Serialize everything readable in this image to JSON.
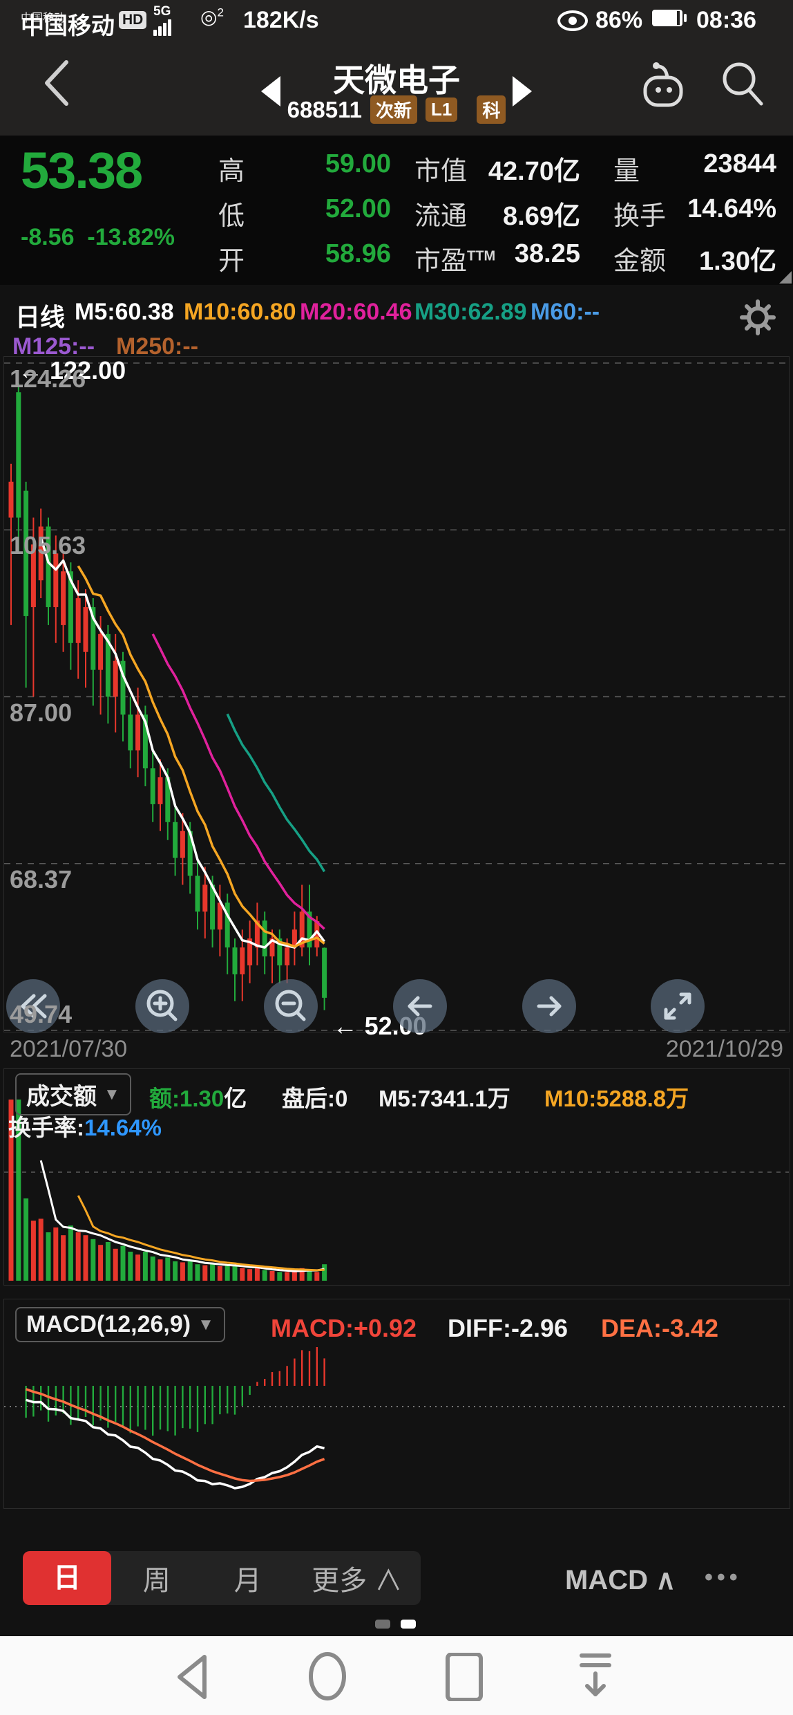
{
  "status_bar": {
    "carrier": "中国移动",
    "hd": "HD",
    "net": "5G",
    "volte": "◎",
    "volte_sup": "2",
    "speed": "182K/s",
    "eye_pct": "86%",
    "time": "08:36"
  },
  "nav": {
    "title": "天微电子",
    "code": "688511",
    "badges": [
      "次新",
      "L1",
      "科"
    ]
  },
  "quote": {
    "price": "53.38",
    "change": "-8.56",
    "change_pct": "-13.82%",
    "left": [
      {
        "label": "高",
        "value": "59.00"
      },
      {
        "label": "低",
        "value": "52.00"
      },
      {
        "label": "开",
        "value": "58.96"
      }
    ],
    "mid": [
      {
        "label": "市值",
        "value": "42.70亿"
      },
      {
        "label": "流通",
        "value": "8.69亿"
      },
      {
        "label": "市盈",
        "sup": "TTM",
        "value": "38.25"
      }
    ],
    "right": [
      {
        "label": "量",
        "value": "23844"
      },
      {
        "label": "换手",
        "value": "14.64%"
      },
      {
        "label": "金额",
        "value": "1.30亿"
      }
    ]
  },
  "indicators": {
    "period": "日线",
    "items": [
      {
        "label": "M5:60.38",
        "color": "#ffffff"
      },
      {
        "label": "M10:60.80",
        "color": "#f5a623"
      },
      {
        "label": "M20:60.46",
        "color": "#e0219c"
      },
      {
        "label": "M30:62.89",
        "color": "#16a085"
      },
      {
        "label": "M60:--",
        "color": "#4a9be6"
      },
      {
        "label": "M125:--",
        "color": "#9b59d0"
      },
      {
        "label": "M250:--",
        "color": "#b4622d"
      }
    ]
  },
  "chart_data": {
    "type": "candlestick",
    "title": "天微电子 688511 日线",
    "x_dates": [
      "2021/07/30",
      "2021/10/29"
    ],
    "price_axis": {
      "max": 124.26,
      "min": 49.74,
      "gridlines": [
        "124.26",
        "105.63",
        "87.00",
        "68.37",
        "49.74"
      ]
    },
    "markers": {
      "high": "← 122.00",
      "low": "← 52.00"
    },
    "colors": {
      "up": "#e8372c",
      "down": "#22aa3c"
    },
    "candles": [
      [
        107,
        111,
        113,
        95,
        200
      ],
      [
        121,
        107,
        122,
        103,
        210
      ],
      [
        110,
        96,
        111,
        88,
        85
      ],
      [
        97,
        104,
        107,
        87,
        62
      ],
      [
        100,
        106,
        108,
        98,
        64
      ],
      [
        106,
        97,
        107,
        95,
        50
      ],
      [
        97,
        103,
        105,
        93,
        55
      ],
      [
        95,
        101,
        103,
        92,
        47
      ],
      [
        101,
        93,
        102,
        90,
        57
      ],
      [
        93,
        98,
        100,
        89,
        50
      ],
      [
        92,
        97,
        99,
        88,
        47
      ],
      [
        97,
        90,
        98,
        86,
        43
      ],
      [
        90,
        94,
        96,
        85,
        37
      ],
      [
        94,
        87,
        95,
        84,
        40
      ],
      [
        87,
        91,
        94,
        83,
        33
      ],
      [
        91,
        85,
        92,
        82,
        36
      ],
      [
        85,
        81,
        87,
        79,
        30
      ],
      [
        81,
        85,
        88,
        78,
        27
      ],
      [
        85,
        79,
        86,
        77,
        30
      ],
      [
        79,
        75,
        81,
        73,
        25
      ],
      [
        75,
        78,
        80,
        72,
        22
      ],
      [
        78,
        73,
        79,
        71,
        24
      ],
      [
        73,
        69,
        75,
        67,
        20
      ],
      [
        69,
        72,
        74,
        66,
        19
      ],
      [
        72,
        67,
        73,
        65,
        20
      ],
      [
        67,
        63,
        69,
        61,
        17
      ],
      [
        63,
        66,
        68,
        60,
        16
      ],
      [
        66,
        61,
        67,
        59,
        17
      ],
      [
        61,
        64,
        66,
        58,
        15
      ],
      [
        64,
        59,
        65,
        56,
        16
      ],
      [
        59,
        56,
        60,
        53,
        15
      ],
      [
        56,
        59,
        61,
        53,
        13
      ],
      [
        57,
        60,
        62,
        55,
        12
      ],
      [
        59,
        62,
        64,
        57,
        13
      ],
      [
        62,
        58,
        63,
        56,
        11
      ],
      [
        58,
        60,
        61,
        55,
        10
      ],
      [
        60,
        57,
        61,
        55,
        9
      ],
      [
        57,
        59,
        60,
        55,
        9
      ],
      [
        59,
        61,
        63,
        57,
        10
      ],
      [
        59,
        63,
        66,
        58,
        13
      ],
      [
        63,
        59,
        66,
        57,
        12
      ],
      [
        59,
        61.94,
        62.5,
        58,
        9
      ],
      [
        58.96,
        53.38,
        59,
        52,
        17
      ]
    ],
    "ma_overlays": [
      {
        "period": 5,
        "color": "#ffffff"
      },
      {
        "period": 10,
        "color": "#f5a623"
      },
      {
        "period": 20,
        "color": "#e0219c"
      },
      {
        "period": 30,
        "color": "#16a085"
      }
    ],
    "volume_ma": [
      {
        "period": 5,
        "color": "#ffffff"
      },
      {
        "period": 10,
        "color": "#f5a623"
      }
    ],
    "macd_params": [
      12,
      26,
      9
    ]
  },
  "volume_panel": {
    "selector": "成交额",
    "amount_green": "额:1.30",
    "amount_unit": "亿",
    "after": "盘后:0",
    "m5": "M5:7341.1万",
    "m10": "M10:5288.8万",
    "turnover_label": "换手率:",
    "turnover": "14.64%"
  },
  "macd_panel": {
    "selector": "MACD(12,26,9)",
    "macd": "MACD:+0.92",
    "diff": "DIFF:-2.96",
    "dea": "DEA:-3.42"
  },
  "tabs": {
    "day": "日",
    "week": "周",
    "month": "月",
    "more": "更多 ∧",
    "right_indicator": "MACD ∧",
    "dots": "•••"
  },
  "theme": {
    "down_green": "#22aa3c",
    "up_red": "#e8372c",
    "accent_orange": "#f5a623",
    "link_blue": "#2f97ff",
    "tab_red": "#e03131"
  }
}
